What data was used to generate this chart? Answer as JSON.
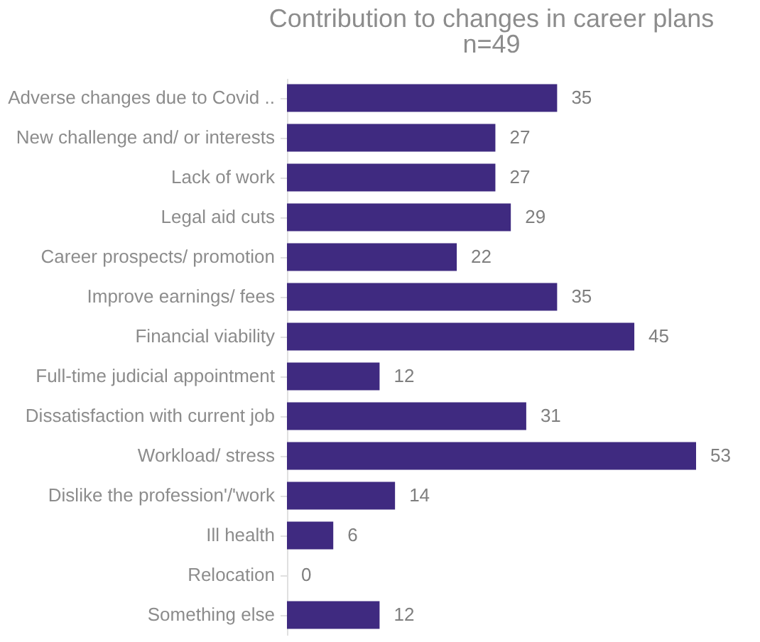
{
  "chart_data": {
    "type": "bar",
    "orientation": "horizontal",
    "title": "Contribution to changes in career plans",
    "subtitle": "n=49",
    "categories": [
      "Adverse changes due to Covid ..",
      "New challenge and/ or interests",
      "Lack of work",
      "Legal aid cuts",
      "Career prospects/ promotion",
      "Improve earnings/ fees",
      "Financial viability",
      "Full-time judicial appointment",
      "Dissatisfaction with current job",
      "Workload/ stress",
      "Dislike the profession'/'work",
      "Ill health",
      "Relocation",
      "Something else"
    ],
    "values": [
      35,
      27,
      27,
      29,
      22,
      35,
      45,
      12,
      31,
      53,
      14,
      6,
      0,
      12
    ],
    "color": "#3f2a80",
    "data_labels": true,
    "tick_labels": "y"
  }
}
